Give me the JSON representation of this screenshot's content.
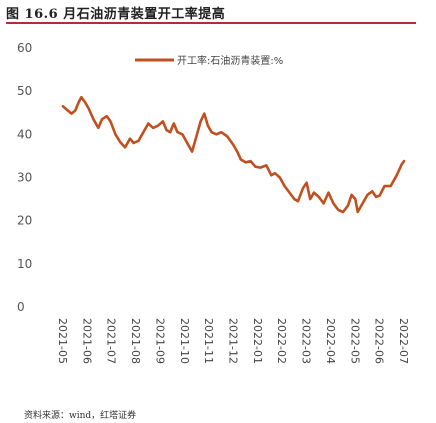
{
  "figure": {
    "title": "图 16.6 月石油沥青装置开工率提高",
    "source": "资料来源：wind，红塔证券"
  },
  "chart_data": {
    "type": "line",
    "title": "",
    "xlabel": "",
    "ylabel": "",
    "ylim": [
      0,
      60
    ],
    "yticks": [
      0,
      10,
      20,
      30,
      40,
      50,
      60
    ],
    "grid": false,
    "legend_position": "top-right",
    "colors": {
      "series": "#c0501f"
    },
    "x_tick_labels": [
      "2021-05",
      "2021-06",
      "2021-07",
      "2021-08",
      "2021-09",
      "2021-10",
      "2021-11",
      "2021-12",
      "2022-01",
      "2022-02",
      "2022-03",
      "2022-04",
      "2022-05",
      "2022-06",
      "2022-07"
    ],
    "x_range": [
      0,
      14
    ],
    "series": [
      {
        "name": "开工率:石油沥青装置:%",
        "points": [
          [
            0.0,
            46.5
          ],
          [
            0.2,
            45.5
          ],
          [
            0.35,
            44.8
          ],
          [
            0.5,
            45.5
          ],
          [
            0.65,
            47.5
          ],
          [
            0.75,
            48.6
          ],
          [
            0.9,
            47.5
          ],
          [
            1.05,
            46.0
          ],
          [
            1.25,
            43.5
          ],
          [
            1.45,
            41.5
          ],
          [
            1.6,
            43.5
          ],
          [
            1.8,
            44.2
          ],
          [
            1.95,
            43.0
          ],
          [
            2.15,
            40.0
          ],
          [
            2.35,
            38.2
          ],
          [
            2.55,
            37.0
          ],
          [
            2.75,
            39.0
          ],
          [
            2.9,
            38.0
          ],
          [
            3.1,
            38.5
          ],
          [
            3.3,
            40.5
          ],
          [
            3.5,
            42.5
          ],
          [
            3.7,
            41.5
          ],
          [
            3.9,
            42.0
          ],
          [
            4.1,
            43.0
          ],
          [
            4.25,
            41.0
          ],
          [
            4.4,
            40.5
          ],
          [
            4.55,
            42.5
          ],
          [
            4.7,
            40.5
          ],
          [
            4.9,
            40.0
          ],
          [
            5.1,
            38.0
          ],
          [
            5.3,
            36.0
          ],
          [
            5.5,
            40.0
          ],
          [
            5.65,
            43.0
          ],
          [
            5.8,
            44.8
          ],
          [
            5.95,
            42.0
          ],
          [
            6.1,
            40.5
          ],
          [
            6.3,
            40.0
          ],
          [
            6.5,
            40.5
          ],
          [
            6.75,
            39.5
          ],
          [
            7.0,
            37.5
          ],
          [
            7.15,
            36.0
          ],
          [
            7.3,
            34.2
          ],
          [
            7.5,
            33.5
          ],
          [
            7.7,
            33.8
          ],
          [
            7.9,
            32.5
          ],
          [
            8.1,
            32.3
          ],
          [
            8.35,
            32.8
          ],
          [
            8.55,
            30.5
          ],
          [
            8.7,
            31.0
          ],
          [
            8.9,
            30.0
          ],
          [
            9.1,
            28.0
          ],
          [
            9.3,
            26.5
          ],
          [
            9.5,
            25.0
          ],
          [
            9.65,
            24.5
          ],
          [
            9.85,
            27.5
          ],
          [
            10.0,
            28.8
          ],
          [
            10.15,
            25.0
          ],
          [
            10.3,
            26.5
          ],
          [
            10.5,
            25.5
          ],
          [
            10.7,
            24.0
          ],
          [
            10.9,
            26.5
          ],
          [
            11.1,
            24.0
          ],
          [
            11.3,
            22.5
          ],
          [
            11.5,
            22.0
          ],
          [
            11.7,
            23.5
          ],
          [
            11.85,
            26.0
          ],
          [
            12.0,
            25.0
          ],
          [
            12.1,
            22.0
          ],
          [
            12.3,
            24.0
          ],
          [
            12.5,
            26.0
          ],
          [
            12.7,
            26.8
          ],
          [
            12.85,
            25.5
          ],
          [
            13.0,
            25.8
          ],
          [
            13.2,
            28.0
          ],
          [
            13.45,
            28.0
          ],
          [
            13.7,
            30.5
          ],
          [
            13.9,
            33.0
          ],
          [
            14.0,
            33.8
          ]
        ]
      }
    ]
  }
}
